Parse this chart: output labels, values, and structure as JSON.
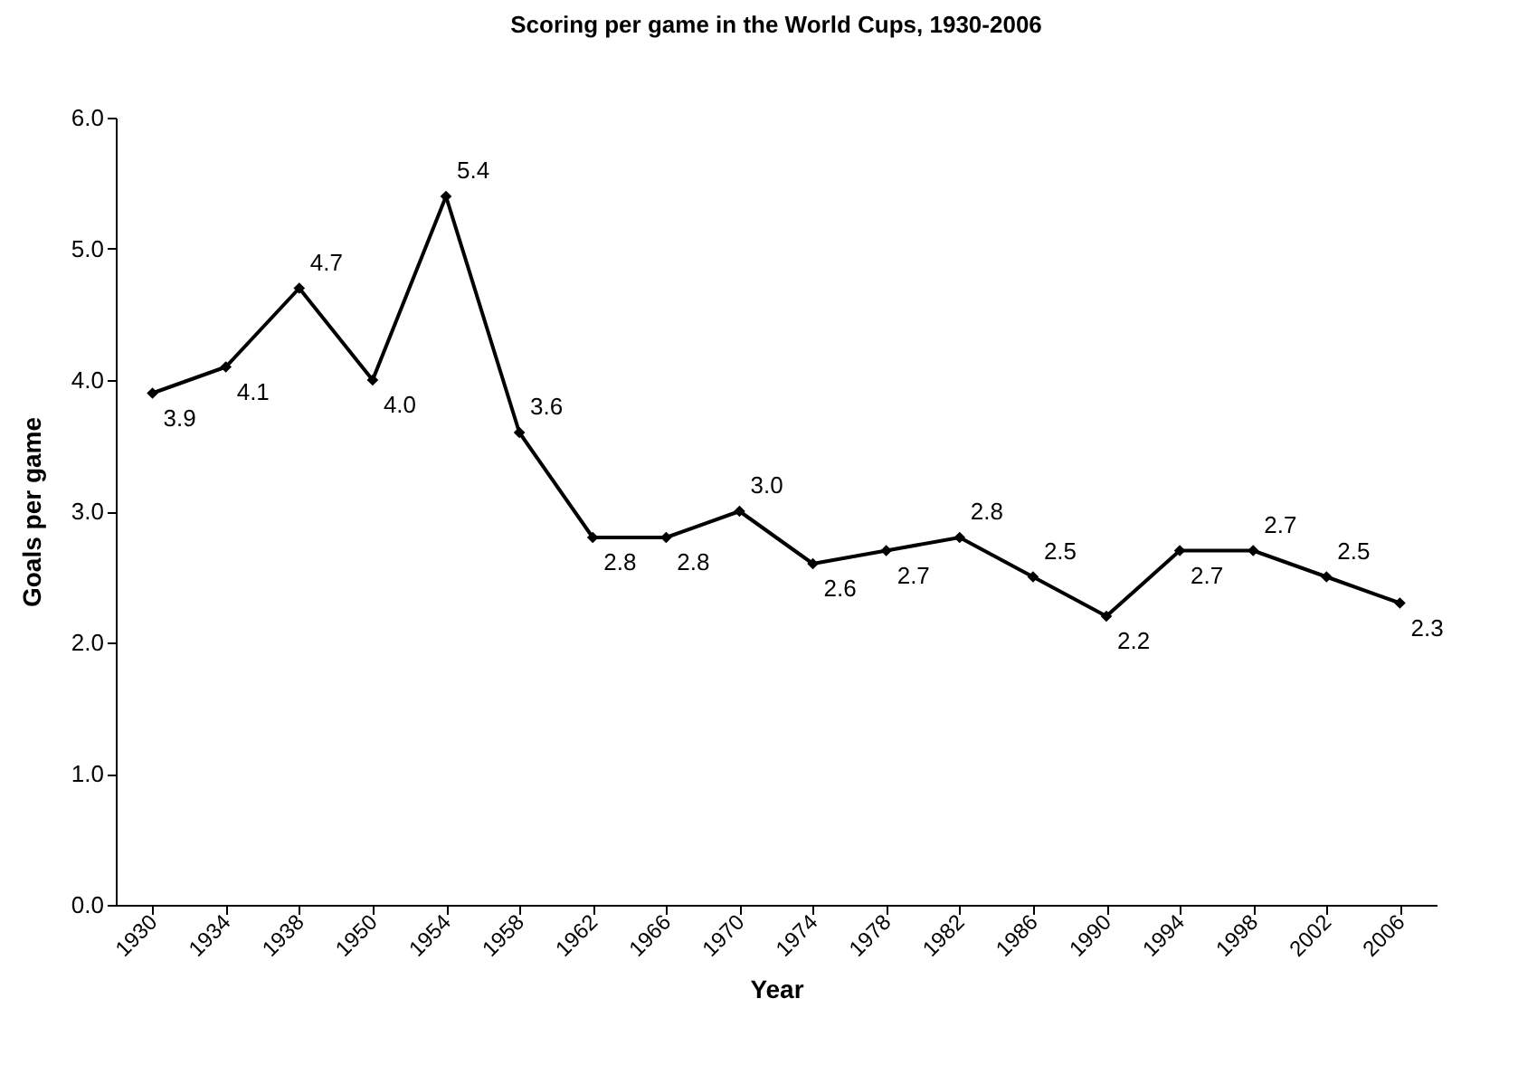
{
  "chart_data": {
    "type": "line",
    "title": "Scoring per game in the World Cups, 1930-2006",
    "xlabel": "Year",
    "ylabel": "Goals per game",
    "categories": [
      "1930",
      "1934",
      "1938",
      "1950",
      "1954",
      "1958",
      "1962",
      "1966",
      "1970",
      "1974",
      "1978",
      "1982",
      "1986",
      "1990",
      "1994",
      "1998",
      "2002",
      "2006"
    ],
    "series": [
      {
        "color": "#000000",
        "values": [
          3.9,
          4.1,
          4.7,
          4.0,
          5.4,
          3.6,
          2.8,
          2.8,
          3.0,
          2.6,
          2.7,
          2.8,
          2.5,
          2.2,
          2.7,
          2.7,
          2.5,
          2.3
        ],
        "value_labels": [
          "3.9",
          "4.1",
          "4.7",
          "4.0",
          "5.4",
          "3.6",
          "2.8",
          "2.8",
          "3.0",
          "2.6",
          "2.7",
          "2.8",
          "2.5",
          "2.2",
          "2.7",
          "2.7",
          "2.5",
          "2.3"
        ]
      }
    ],
    "ylim": [
      0,
      6
    ],
    "yticks": [
      {
        "value": 0,
        "label": "0.0"
      },
      {
        "value": 1,
        "label": "1.0"
      },
      {
        "value": 2,
        "label": "2.0"
      },
      {
        "value": 3,
        "label": "3.0"
      },
      {
        "value": 4,
        "label": "4.0"
      },
      {
        "value": 5,
        "label": "5.0"
      },
      {
        "value": 6,
        "label": "6.0"
      }
    ],
    "grid": false,
    "legend": false,
    "marker": "diamond",
    "line_style": "solid"
  }
}
